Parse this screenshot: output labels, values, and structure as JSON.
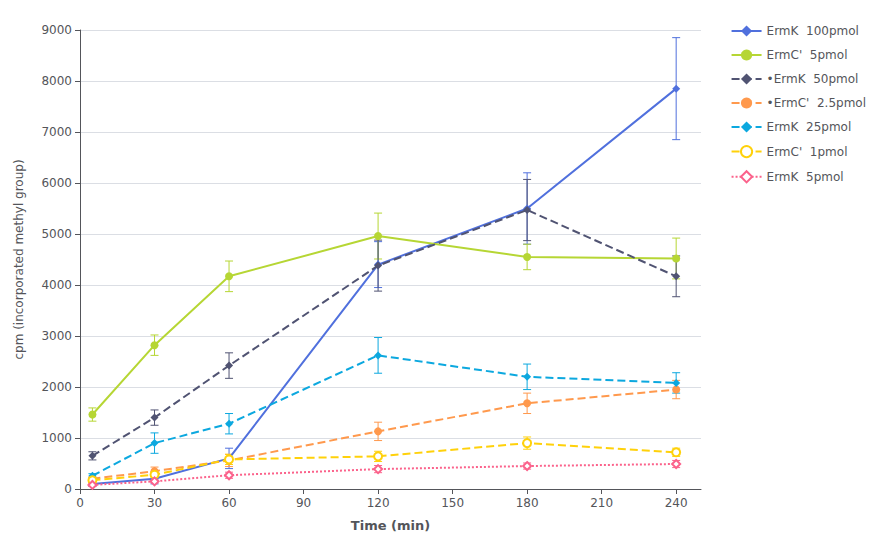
{
  "chart_data": {
    "type": "line",
    "x_label": "Time (min)",
    "y_label": "cpm (incorporated methyl group)",
    "xlim": [
      0,
      250
    ],
    "ylim": [
      0,
      9000
    ],
    "xticks": [
      0,
      30,
      60,
      90,
      120,
      150,
      180,
      210,
      240
    ],
    "yticks": [
      0,
      1000,
      2000,
      3000,
      4000,
      5000,
      6000,
      7000,
      8000,
      9000
    ],
    "grid": true,
    "legend": "right",
    "series": [
      {
        "name": "ErmK  100pmol",
        "x": [
          5,
          30,
          60,
          120,
          180,
          240
        ],
        "values": [
          100,
          200,
          600,
          4400,
          5500,
          7850
        ],
        "yerr": [
          50,
          100,
          200,
          450,
          700,
          1000
        ],
        "marker": "diamond",
        "line_style": "solid"
      },
      {
        "name": "ErmC'  5pmol",
        "x": [
          5,
          30,
          60,
          120,
          180,
          240
        ],
        "values": [
          1460,
          2820,
          4170,
          4960,
          4550,
          4520
        ],
        "yerr": [
          130,
          200,
          300,
          450,
          250,
          400
        ],
        "marker": "circle",
        "line_style": "solid"
      },
      {
        "name": "•ErmK  50pmol",
        "x": [
          5,
          30,
          60,
          120,
          180,
          240
        ],
        "values": [
          650,
          1400,
          2420,
          4380,
          5470,
          4170
        ],
        "yerr": [
          80,
          150,
          250,
          500,
          600,
          400
        ],
        "marker": "diamond",
        "line_style": "dashed"
      },
      {
        "name": "•ErmC'  2.5pmol",
        "x": [
          5,
          30,
          60,
          120,
          180,
          240
        ],
        "values": [
          200,
          350,
          560,
          1130,
          1680,
          1950
        ],
        "yerr": [
          40,
          80,
          120,
          180,
          200,
          180
        ],
        "marker": "circle",
        "line_style": "dashed"
      },
      {
        "name": "ErmK  25pmol",
        "x": [
          5,
          30,
          60,
          120,
          180,
          240
        ],
        "values": [
          260,
          900,
          1280,
          2620,
          2200,
          2080
        ],
        "yerr": [
          40,
          200,
          200,
          350,
          250,
          200
        ],
        "marker": "diamond",
        "line_style": "dashed"
      },
      {
        "name": "ErmC'  1pmol",
        "x": [
          5,
          30,
          60,
          120,
          180,
          240
        ],
        "values": [
          170,
          280,
          580,
          640,
          900,
          720
        ],
        "yerr": [
          30,
          60,
          100,
          100,
          120,
          80
        ],
        "marker": "open_circle",
        "line_style": "dashed"
      },
      {
        "name": "ErmK  5pmol",
        "x": [
          5,
          30,
          60,
          120,
          180,
          240
        ],
        "values": [
          80,
          150,
          270,
          390,
          450,
          490
        ],
        "yerr": [
          20,
          30,
          60,
          70,
          60,
          70
        ],
        "marker": "open_diamond",
        "line_style": "dotted"
      }
    ]
  }
}
